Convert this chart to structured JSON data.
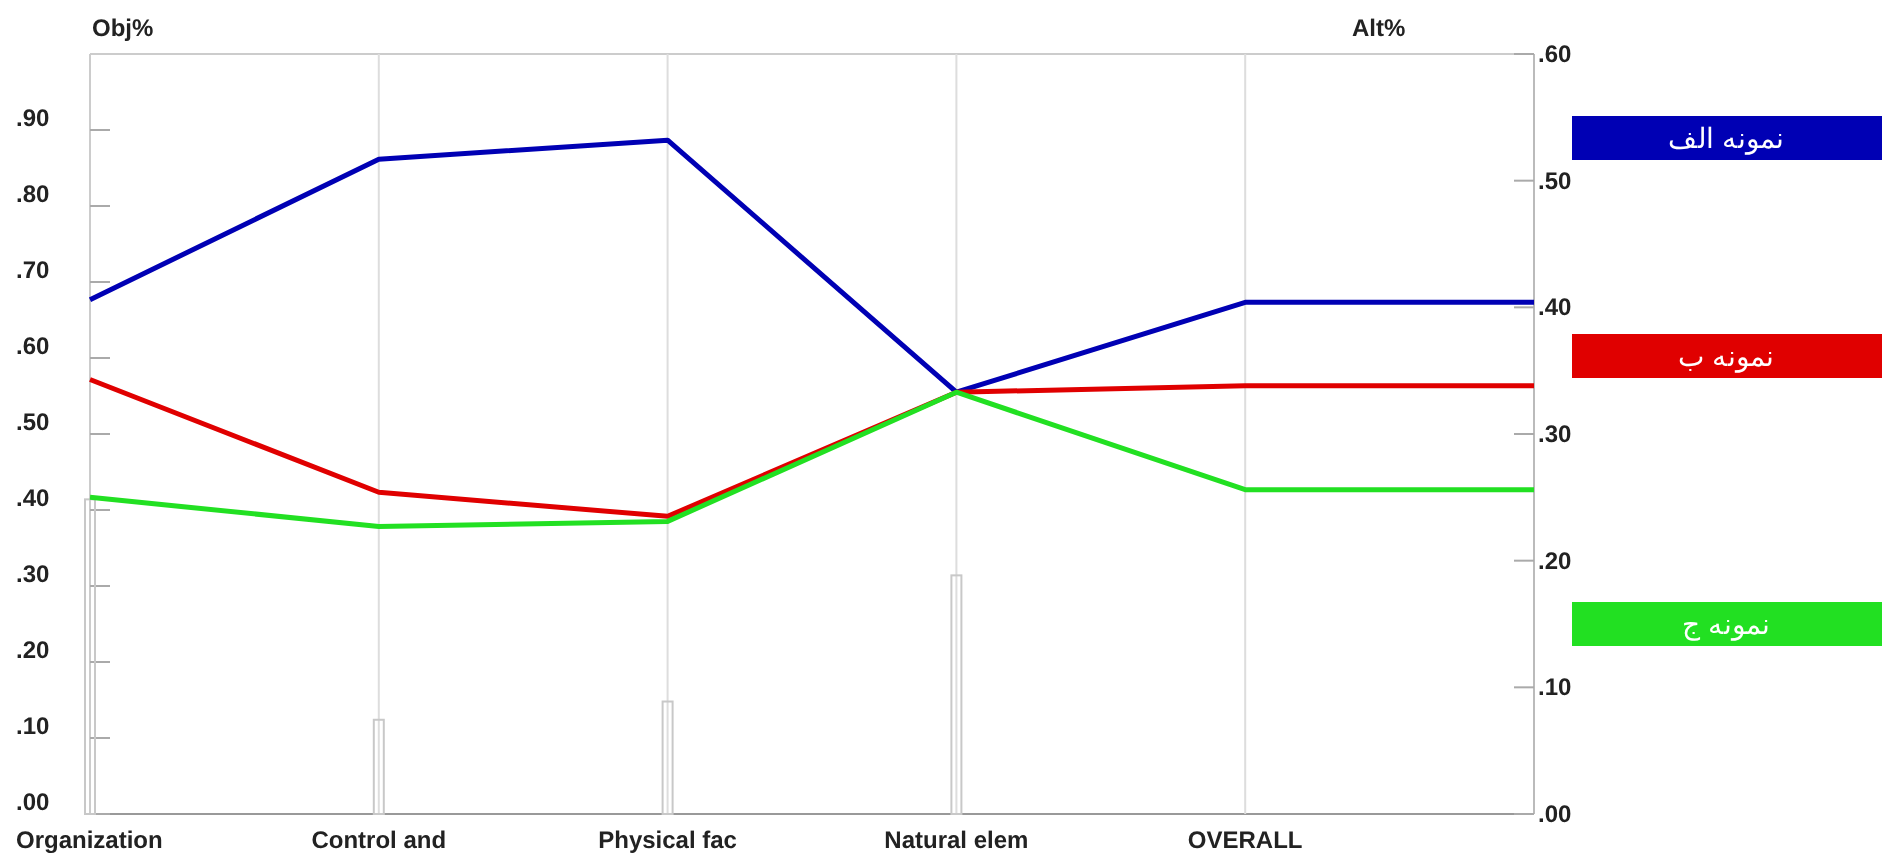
{
  "chart_data": {
    "type": "line",
    "ylabel": "Obj%",
    "y2label": "Alt%",
    "categories": [
      "Organization",
      "Control and",
      "Physical fac",
      "Natural elem",
      "OVERALL",
      null
    ],
    "series": [
      {
        "type": "bar",
        "color": "#c8c8c8",
        "values": [
          0.414,
          0.124,
          0.148,
          0.314,
          null,
          null
        ]
      },
      {
        "name": "نمونه الف",
        "color": "#0000b4",
        "axis": "y2",
        "values": [
          0.406,
          0.517,
          0.532,
          0.333,
          0.404,
          0.404
        ]
      },
      {
        "name": "نمونه ب",
        "color": "#e00000",
        "axis": "y2",
        "values": [
          0.343,
          0.254,
          0.235,
          0.333,
          0.338,
          0.338
        ]
      },
      {
        "name": "نمونه ج",
        "color": "#22e022",
        "axis": "y2",
        "values": [
          0.25,
          0.227,
          0.231,
          0.333,
          0.256,
          0.256
        ]
      }
    ],
    "ylim": [
      0,
      1.0
    ],
    "yticks": [
      {
        "value": 0,
        "label": ".00"
      },
      {
        "value": 0.1,
        "label": ".10"
      },
      {
        "value": 0.2,
        "label": ".20"
      },
      {
        "value": 0.3,
        "label": ".30"
      },
      {
        "value": 0.4,
        "label": ".40"
      },
      {
        "value": 0.5,
        "label": ".50"
      },
      {
        "value": 0.6,
        "label": ".60"
      },
      {
        "value": 0.7,
        "label": ".70"
      },
      {
        "value": 0.8,
        "label": ".80"
      },
      {
        "value": 0.9,
        "label": ".90"
      }
    ],
    "y2lim": [
      0,
      0.6
    ],
    "y2ticks": [
      {
        "value": 0,
        "label": ".00"
      },
      {
        "value": 0.1,
        "label": ".10"
      },
      {
        "value": 0.2,
        "label": ".20"
      },
      {
        "value": 0.3,
        "label": ".30"
      },
      {
        "value": 0.4,
        "label": ".40"
      },
      {
        "value": 0.5,
        "label": ".50"
      },
      {
        "value": 0.6,
        "label": ".60"
      }
    ],
    "grid": "x",
    "legend": "right"
  }
}
